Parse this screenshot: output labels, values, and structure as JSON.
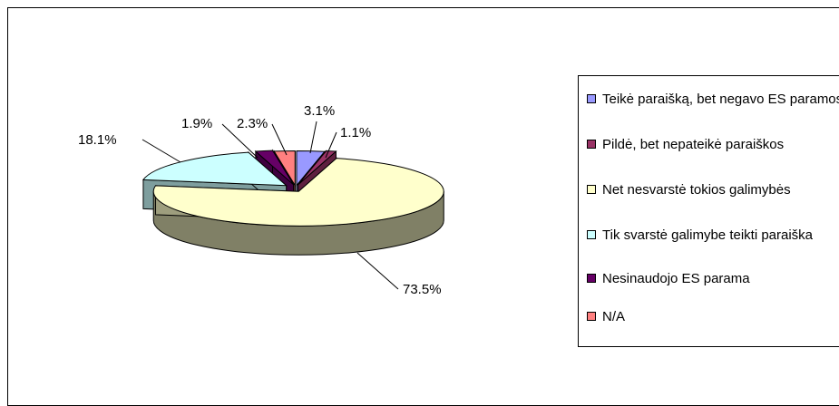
{
  "chart_data": {
    "type": "pie",
    "style": "3d-exploded",
    "slices": [
      {
        "label": "Teikė paraišką, bet negavo ES paramos",
        "value": 3.1,
        "value_label": "3.1%",
        "color": "#9999FF"
      },
      {
        "label": "Pildė, bet nepateikė paraiškos",
        "value": 1.1,
        "value_label": "1.1%",
        "color": "#993366"
      },
      {
        "label": "Net nesvarstė tokios galimybės",
        "value": 73.5,
        "value_label": "73.5%",
        "color": "#FFFFCC"
      },
      {
        "label": "Tik svarstė galimybe teikti paraiška",
        "value": 18.1,
        "value_label": "18.1%",
        "color": "#CCFFFF"
      },
      {
        "label": "Nesinaudojo ES parama",
        "value": 1.9,
        "value_label": "1.9%",
        "color": "#660066"
      },
      {
        "label": "N/A",
        "value": 2.3,
        "value_label": "2.3%",
        "color": "#FF8080"
      }
    ],
    "legend_position": "right"
  }
}
